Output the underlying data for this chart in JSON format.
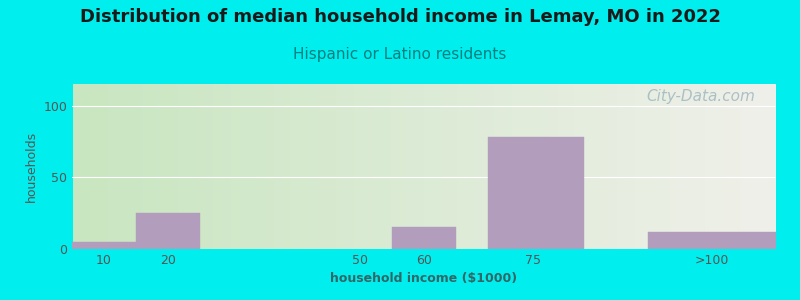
{
  "title": "Distribution of median household income in Lemay, MO in 2022",
  "subtitle": "Hispanic or Latino residents",
  "xlabel": "household income ($1000)",
  "ylabel": "households",
  "background_color": "#00EEEE",
  "plot_bg_gradient_left": "#c8e6c0",
  "plot_bg_gradient_right": "#f0f0ea",
  "bar_color": "#b39dbd",
  "bar_edge_color": "#b39dbd",
  "watermark": "City-Data.com",
  "bar_positions": [
    0,
    10,
    40,
    50,
    65,
    90
  ],
  "bar_widths": [
    10,
    10,
    10,
    10,
    15,
    20
  ],
  "bar_heights": [
    5,
    25,
    0,
    15,
    78,
    12
  ],
  "xlim": [
    0,
    110
  ],
  "ylim": [
    0,
    115
  ],
  "yticks": [
    0,
    50,
    100
  ],
  "xtick_positions": [
    5,
    15,
    45,
    55,
    72,
    100
  ],
  "xtick_labels": [
    "10",
    "20",
    "50",
    "60",
    "75",
    ">100"
  ],
  "title_fontsize": 13,
  "subtitle_fontsize": 11,
  "axis_label_fontsize": 9,
  "tick_fontsize": 9,
  "title_color": "#1a1a1a",
  "subtitle_color": "#008080",
  "watermark_color": "#a0b8c0",
  "watermark_fontsize": 11
}
